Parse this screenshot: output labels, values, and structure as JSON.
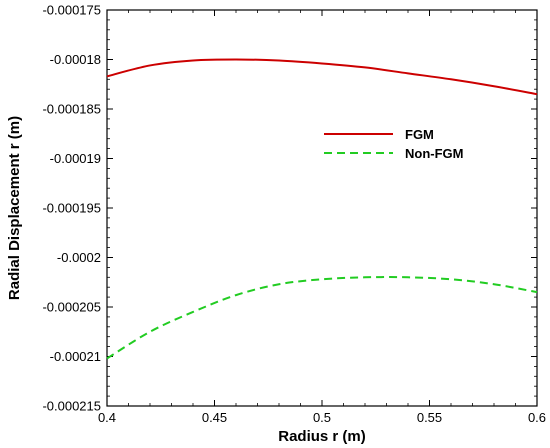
{
  "chart_data": {
    "type": "line",
    "title": "",
    "xlabel": "Radius r (m)",
    "ylabel": "Radial Displacement r (m)",
    "xlim": [
      0.4,
      0.6
    ],
    "ylim": [
      -0.000215,
      -0.000175
    ],
    "xticks": [
      0.4,
      0.45,
      0.5,
      0.55,
      0.6
    ],
    "xtick_labels": [
      "0.4",
      "0.45",
      "0.5",
      "0.55",
      "0.6"
    ],
    "yticks": [
      -0.000175,
      -0.00018,
      -0.000185,
      -0.00019,
      -0.000195,
      -0.0002,
      -0.000205,
      -0.00021,
      -0.000215
    ],
    "ytick_labels": [
      "-0.000175",
      "-0.00018",
      "-0.000185",
      "-0.00019",
      "-0.000195",
      "-0.0002",
      "-0.000205",
      "-0.00021",
      "-0.000215"
    ],
    "grid": false,
    "legend_position": "right, upper-middle",
    "series": [
      {
        "name": "FGM",
        "color": "#cc0000",
        "dash": "solid",
        "x": [
          0.4,
          0.42,
          0.44,
          0.46,
          0.48,
          0.5,
          0.52,
          0.54,
          0.56,
          0.58,
          0.6
        ],
        "y": [
          -0.0001817,
          -0.0001806,
          -0.0001801,
          -0.00018,
          -0.0001801,
          -0.0001804,
          -0.0001808,
          -0.0001814,
          -0.000182,
          -0.0001827,
          -0.0001835
        ]
      },
      {
        "name": "Non-FGM",
        "color": "#22cc22",
        "dash": "dashed",
        "x": [
          0.4,
          0.42,
          0.44,
          0.46,
          0.48,
          0.5,
          0.52,
          0.54,
          0.56,
          0.58,
          0.6
        ],
        "y": [
          -0.0002102,
          -0.0002075,
          -0.0002055,
          -0.0002038,
          -0.0002027,
          -0.0002022,
          -0.000202,
          -0.000202,
          -0.0002022,
          -0.0002027,
          -0.0002035
        ]
      }
    ]
  }
}
